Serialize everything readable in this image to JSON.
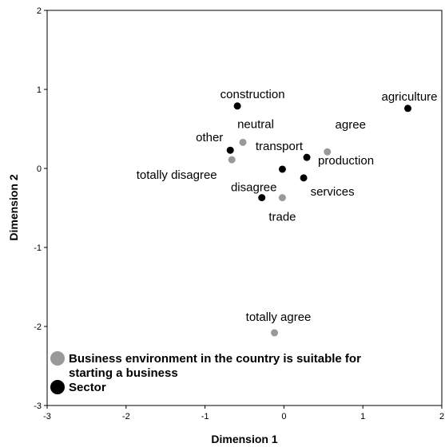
{
  "chart_data": {
    "type": "scatter",
    "title": "",
    "xlabel": "Dimension 1",
    "ylabel": "Dimension 2",
    "xlim": [
      -3,
      2
    ],
    "ylim": [
      -3,
      2
    ],
    "xticks": [
      -3,
      -2,
      -1,
      0,
      1,
      2
    ],
    "yticks": [
      -3,
      -2,
      -1,
      0,
      1,
      2
    ],
    "grid": false,
    "legend_position": "bottom-left",
    "series": [
      {
        "name": "Business environment in the country is suitable for starting a business",
        "name_lines": [
          "Business environment in the country is suitable for",
          "starting a business"
        ],
        "color": "#999999",
        "points": [
          {
            "label": "neutral",
            "x": -0.52,
            "y": 0.33
          },
          {
            "label": "agree",
            "x": 0.55,
            "y": 0.21
          },
          {
            "label": "totally disagree",
            "x": -0.66,
            "y": 0.11
          },
          {
            "label": "trade",
            "x": -0.02,
            "y": -0.37
          },
          {
            "label": "totally agree",
            "x": -0.12,
            "y": -2.08
          }
        ]
      },
      {
        "name": "Sector",
        "name_lines": [
          "Sector"
        ],
        "color": "#000000",
        "points": [
          {
            "label": "construction",
            "x": -0.59,
            "y": 0.79
          },
          {
            "label": "agriculture",
            "x": 1.57,
            "y": 0.76
          },
          {
            "label": "other",
            "x": -0.68,
            "y": 0.23
          },
          {
            "label": "transport",
            "x": -0.02,
            "y": -0.01
          },
          {
            "label": "production",
            "x": 0.29,
            "y": 0.14
          },
          {
            "label": "services",
            "x": 0.25,
            "y": -0.12
          },
          {
            "label": "disagree",
            "x": -0.28,
            "y": -0.37
          }
        ]
      }
    ]
  }
}
